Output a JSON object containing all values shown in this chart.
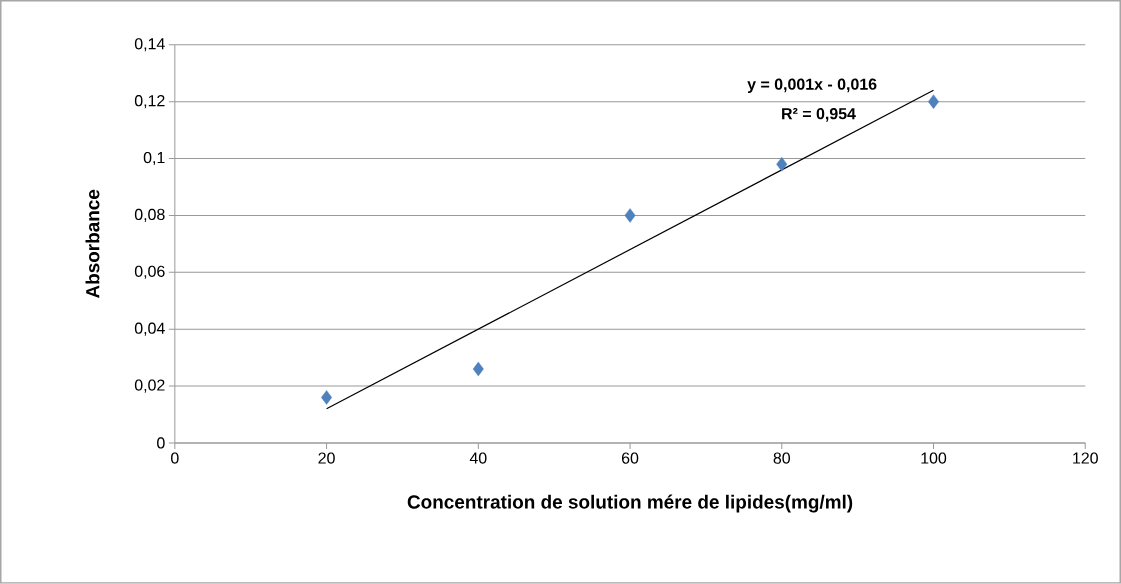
{
  "chart_data": {
    "type": "scatter",
    "xlabel": "Concentration de solution mére de lipides(mg/ml)",
    "ylabel": "Absorbance",
    "annotations": [
      "y = 0,001x - 0,016",
      "R² = 0,954"
    ],
    "x": [
      20,
      40,
      60,
      80,
      100
    ],
    "series": [
      {
        "color": "#4f81bd",
        "marker": "diamond",
        "values": [
          0.016,
          0.026,
          0.08,
          0.098,
          0.12
        ]
      },
      {
        "type": "line",
        "color": "#000000",
        "marker": "none",
        "x": [
          20,
          100
        ],
        "values": [
          0.012,
          0.124
        ]
      }
    ],
    "xlim": [
      0,
      120
    ],
    "xticks": [
      0,
      20,
      40,
      60,
      80,
      100,
      120
    ],
    "ylim": [
      0,
      0.14
    ],
    "yticks": [
      {
        "value": 0,
        "label": "0"
      },
      {
        "value": 0.02,
        "label": "0,02"
      },
      {
        "value": 0.04,
        "label": "0,04"
      },
      {
        "value": 0.06,
        "label": "0,06"
      },
      {
        "value": 0.08,
        "label": "0,08"
      },
      {
        "value": 0.1,
        "label": "0,1"
      },
      {
        "value": 0.12,
        "label": "0,12"
      },
      {
        "value": 0.14,
        "label": "0,14"
      }
    ],
    "grid": "y"
  }
}
